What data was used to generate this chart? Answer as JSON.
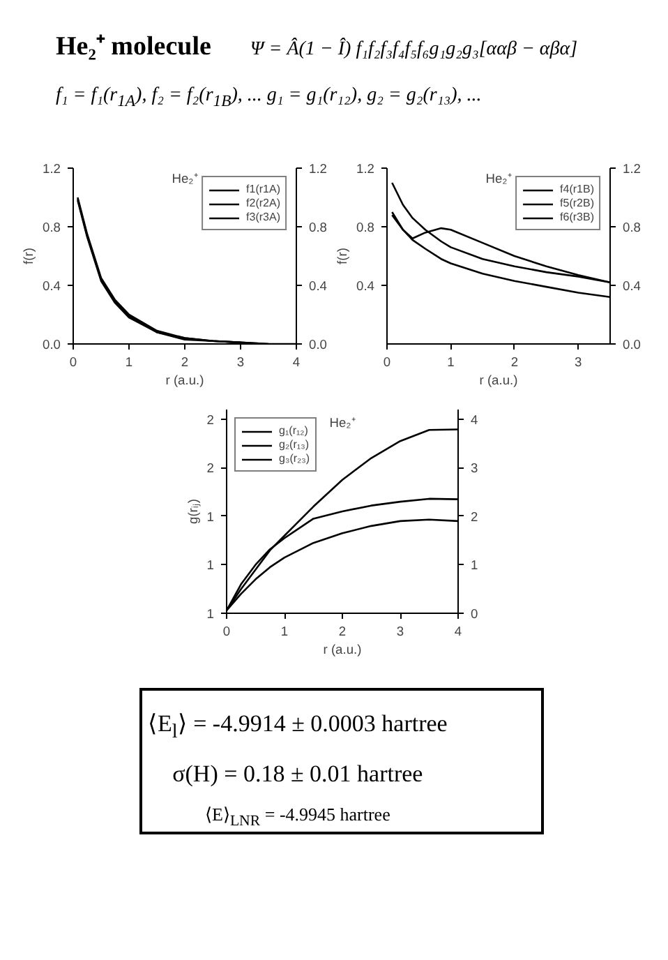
{
  "chart_data": [
    {
      "type": "other",
      "title": "He₂⁺ molecule",
      "annotations": [
        "Ψ = Â(1 − Î) f₁f₂f₃f₄f₅f₆g₁g₂g₃[ααβ − αβα]",
        "f₁ = f₁(r$_{1A}$),  f₂ = f₂(r$_{1B}$),  ...    g₁ = g₁(r₁₂),  g₂ = g₂(r₁₃),  ..."
      ]
    },
    {
      "type": "line",
      "xlabel": "r (a.u.)",
      "ylabel": "f(r)",
      "annotations": [
        "He₂⁺"
      ],
      "xlim": [
        0,
        4
      ],
      "xticks": [
        0,
        1,
        2,
        3,
        4
      ],
      "ylim": [
        0,
        1.2
      ],
      "yticks": [
        {
          "value": 0,
          "label": "0.0"
        },
        0.4,
        0.8,
        1.2
      ],
      "y2lim": [
        0,
        1.2
      ],
      "y2ticks": [
        {
          "value": 0,
          "label": "0.0"
        },
        0.4,
        0.8,
        1.2
      ],
      "legend": "top right",
      "grid": false,
      "x": [
        0.08,
        0.25,
        0.5,
        0.75,
        1,
        1.5,
        2,
        2.5,
        3,
        3.5,
        4
      ],
      "series": [
        {
          "name": "f1(r1A)",
          "color": "#000000",
          "values": [
            1.0,
            0.75,
            0.45,
            0.3,
            0.2,
            0.09,
            0.04,
            0.02,
            0.01,
            0.0,
            0.0
          ]
        },
        {
          "name": "f2(r2A)",
          "color": "#000000",
          "x": [
            0.08,
            0.25,
            0.5,
            0.75,
            1,
            1.5,
            2,
            2.5,
            3,
            3.5
          ],
          "values": [
            0.99,
            0.74,
            0.44,
            0.29,
            0.19,
            0.08,
            0.04,
            0.02,
            0.01,
            0.0
          ]
        },
        {
          "name": "f3(r3A)",
          "color": "#000000",
          "x": [
            0.08,
            0.25,
            0.5,
            0.75,
            1,
            1.5,
            2,
            2.5,
            3
          ],
          "values": [
            0.98,
            0.73,
            0.43,
            0.28,
            0.18,
            0.08,
            0.03,
            0.02,
            0.01
          ]
        }
      ]
    },
    {
      "type": "line",
      "xlabel": "r (a.u.)",
      "ylabel": "f(r)",
      "annotations": [
        "He₂⁺"
      ],
      "xlim": [
        0,
        3.5
      ],
      "xticks": [
        0,
        1,
        2,
        3
      ],
      "ylim": [
        0,
        1.2
      ],
      "yticks": [
        0.4,
        0.8,
        1.2
      ],
      "y2lim": [
        0,
        1.2
      ],
      "y2ticks": [
        {
          "value": 0,
          "label": "0.0"
        },
        0.4,
        0.8,
        1.2
      ],
      "legend": "top right",
      "grid": false,
      "x": [
        0.08,
        0.25,
        0.4,
        0.6,
        0.85,
        1,
        1.5,
        2,
        2.5,
        3,
        3.5
      ],
      "series": [
        {
          "name": "f4(r1B)",
          "color": "#000000",
          "values": [
            1.1,
            0.95,
            0.86,
            0.78,
            0.7,
            0.66,
            0.58,
            0.53,
            0.49,
            0.46,
            0.42
          ]
        },
        {
          "name": "f5(r2B)",
          "color": "#000000",
          "values": [
            0.9,
            0.78,
            0.72,
            0.76,
            0.79,
            0.78,
            0.69,
            0.6,
            0.53,
            0.47,
            0.42
          ]
        },
        {
          "name": "f6(r3B)",
          "color": "#000000",
          "values": [
            0.88,
            0.78,
            0.71,
            0.65,
            0.58,
            0.55,
            0.48,
            0.43,
            0.39,
            0.35,
            0.32
          ]
        }
      ]
    },
    {
      "type": "line",
      "xlabel": "r (a.u.)",
      "ylabel": "g(rᵢⱼ)",
      "annotations": [
        "He₂⁺"
      ],
      "xlim": [
        0,
        4
      ],
      "xticks": [
        0,
        1,
        2,
        3,
        4
      ],
      "ylim": [
        1.0,
        1.84
      ],
      "yticks": [
        {
          "value": 1.0,
          "label": "1"
        },
        {
          "value": 1.2,
          "label": "1"
        },
        {
          "value": 1.4,
          "label": "1"
        },
        {
          "value": 1.6,
          "label": "2"
        },
        {
          "value": 1.8,
          "label": "2"
        }
      ],
      "y2lim": [
        0,
        4.2
      ],
      "y2ticks": [
        0,
        1,
        2,
        3,
        4
      ],
      "legend": "top left",
      "grid": false,
      "x": [
        0,
        0.25,
        0.5,
        0.75,
        1,
        1.5,
        2,
        2.5,
        3,
        3.5,
        4
      ],
      "series": [
        {
          "name": "g₁(r₁₂)",
          "color": "#000000",
          "axis": "y2",
          "values": [
            0.06,
            0.5,
            0.9,
            1.3,
            1.6,
            2.2,
            2.75,
            3.2,
            3.55,
            3.78,
            3.79
          ]
        },
        {
          "name": "g₂(r₁₃)",
          "color": "#000000",
          "axis": "y2",
          "values": [
            0.06,
            0.6,
            1.0,
            1.32,
            1.55,
            1.95,
            2.1,
            2.22,
            2.3,
            2.36,
            2.35
          ]
        },
        {
          "name": "g₃(r₂₃)",
          "color": "#000000",
          "axis": "y2",
          "values": [
            0.06,
            0.4,
            0.7,
            0.95,
            1.15,
            1.45,
            1.65,
            1.8,
            1.9,
            1.93,
            1.9
          ]
        }
      ]
    },
    {
      "type": "other",
      "annotations": [
        "⟨E$_{l}$⟩ = -4.9914 ± 0.0003  hartree",
        "σ(H)  = 0.18 ± 0.01  hartree",
        "⟨E⟩$_{LNR}$ = -4.9945 hartree"
      ]
    }
  ]
}
